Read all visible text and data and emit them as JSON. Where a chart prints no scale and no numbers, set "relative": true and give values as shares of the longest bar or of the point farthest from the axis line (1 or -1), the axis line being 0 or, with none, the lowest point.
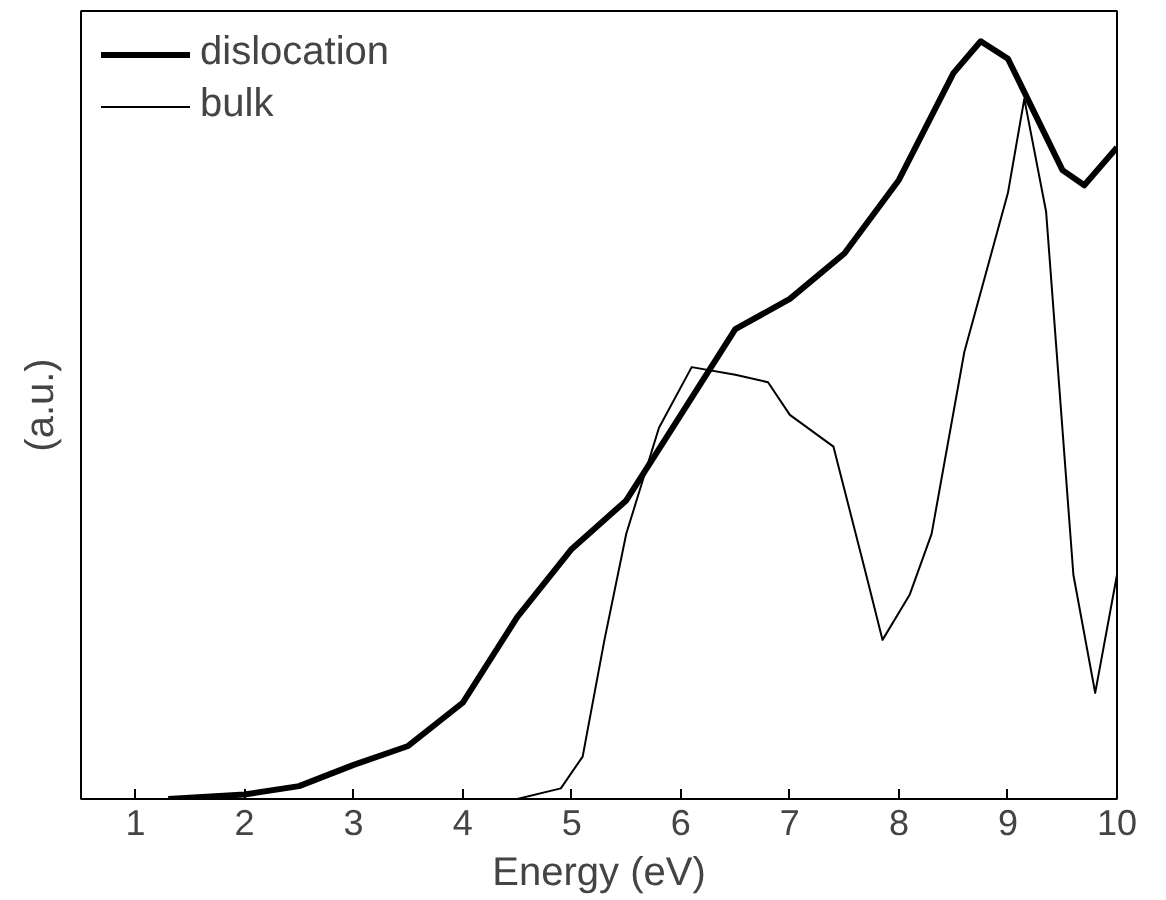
{
  "chart_data": {
    "type": "line",
    "relative": true,
    "xlabel": "Energy (eV)",
    "ylabel": "(a.u.)",
    "xlim": [
      0.5,
      10
    ],
    "xticks": [
      1,
      2,
      3,
      4,
      5,
      6,
      7,
      8,
      9,
      10
    ],
    "legend": "top left",
    "grid": false,
    "line_style": "solid",
    "series": [
      {
        "name": "dislocation",
        "color": "#000000",
        "x": [
          1.3,
          2.0,
          2.5,
          3.0,
          3.5,
          4.0,
          4.5,
          5.0,
          5.5,
          6.0,
          6.5,
          7.0,
          7.5,
          8.0,
          8.5,
          8.75,
          9.0,
          9.5,
          9.7,
          10.0
        ],
        "values": [
          0,
          0.006,
          0.017,
          0.045,
          0.07,
          0.127,
          0.24,
          0.33,
          0.394,
          0.507,
          0.62,
          0.66,
          0.72,
          0.817,
          0.958,
          1.0,
          0.977,
          0.83,
          0.81,
          0.86
        ]
      },
      {
        "name": "bulk",
        "color": "#000000",
        "x": [
          1.3,
          4.5,
          4.9,
          5.1,
          5.3,
          5.5,
          5.8,
          6.1,
          6.5,
          6.8,
          7.0,
          7.4,
          7.7,
          7.85,
          8.1,
          8.3,
          8.6,
          9.0,
          9.15,
          9.35,
          9.6,
          9.8,
          10.0
        ],
        "values": [
          0,
          0,
          0.014,
          0.056,
          0.21,
          0.35,
          0.49,
          0.57,
          0.56,
          0.55,
          0.507,
          0.465,
          0.296,
          0.21,
          0.27,
          0.35,
          0.59,
          0.8,
          0.924,
          0.775,
          0.296,
          0.14,
          0.296
        ]
      }
    ]
  }
}
